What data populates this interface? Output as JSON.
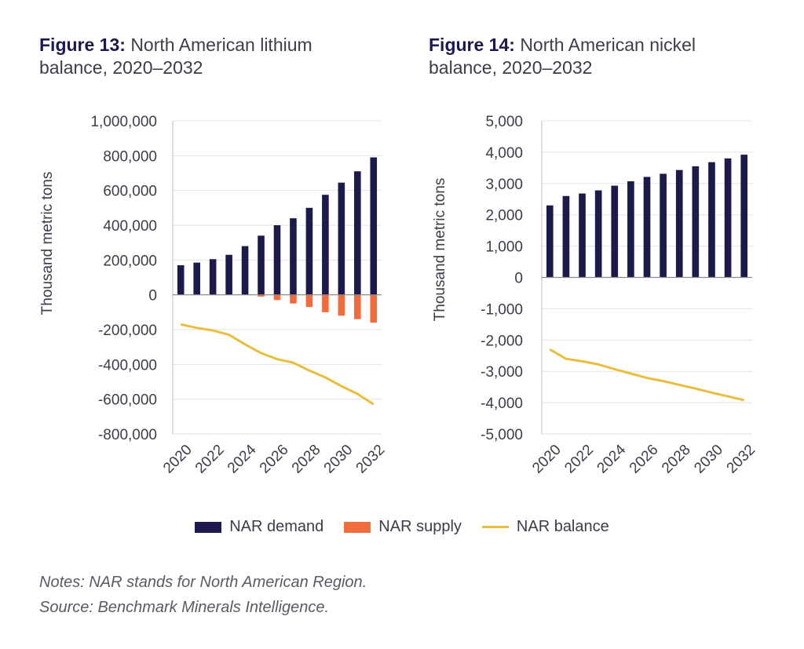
{
  "figures": [
    {
      "lead": "Figure 13:",
      "title": "North American lithium balance, 2020–2032"
    },
    {
      "lead": "Figure 14:",
      "title": "North American nickel balance, 2020–2032"
    }
  ],
  "legend": [
    {
      "label": "NAR demand",
      "color": "#1b1a4b",
      "kind": "box"
    },
    {
      "label": "NAR supply",
      "color": "#f26b3a",
      "kind": "box"
    },
    {
      "label": "NAR balance",
      "color": "#e8be3f",
      "kind": "line"
    }
  ],
  "notes": {
    "line1": "Notes: NAR stands for North American Region.",
    "line2": "Source: Benchmark Minerals Intelligence."
  },
  "chart_data": [
    {
      "type": "bar",
      "title": "Figure 13: North American lithium balance, 2020–2032",
      "ylabel": "Thousand metric tons",
      "ylim": [
        -800000,
        1000000
      ],
      "yticks": [
        1000000,
        800000,
        600000,
        400000,
        200000,
        0,
        -200000,
        -400000,
        -600000,
        -800000
      ],
      "ytick_labels": [
        "1,000,000",
        "800,000",
        "600,000",
        "400,000",
        "200,000",
        "0",
        "-200,000",
        "-400,000",
        "-600,000",
        "-800,000"
      ],
      "categories": [
        "2020",
        "2021",
        "2022",
        "2023",
        "2024",
        "2025",
        "2026",
        "2027",
        "2028",
        "2029",
        "2030",
        "2031",
        "2032"
      ],
      "xtick_labels": [
        "2020",
        "2022",
        "2024",
        "2026",
        "2028",
        "2030",
        "2032"
      ],
      "grid": true,
      "series": [
        {
          "name": "NAR demand",
          "type": "bar",
          "color": "#1b1a4b",
          "values": [
            170000,
            185000,
            205000,
            230000,
            280000,
            340000,
            400000,
            440000,
            500000,
            575000,
            645000,
            710000,
            790000
          ]
        },
        {
          "name": "NAR supply",
          "type": "bar",
          "color": "#f26b3a",
          "values": [
            0,
            0,
            0,
            0,
            0,
            -10000,
            -30000,
            -50000,
            -70000,
            -100000,
            -120000,
            -140000,
            -160000
          ]
        },
        {
          "name": "NAR balance",
          "type": "line",
          "color": "#e8be3f",
          "values": [
            -170000,
            -190000,
            -205000,
            -230000,
            -285000,
            -335000,
            -370000,
            -390000,
            -435000,
            -475000,
            -525000,
            -570000,
            -630000
          ]
        }
      ]
    },
    {
      "type": "bar",
      "title": "Figure 14: North American nickel balance, 2020–2032",
      "ylabel": "Thousand metric tons",
      "ylim": [
        -5000,
        5000
      ],
      "yticks": [
        5000,
        4000,
        3000,
        2000,
        1000,
        0,
        -1000,
        -2000,
        -3000,
        -4000,
        -5000
      ],
      "ytick_labels": [
        "5,000",
        "4,000",
        "3,000",
        "2,000",
        "1,000",
        "0",
        "-1,000",
        "-2,000",
        "-3,000",
        "-4,000",
        "-5,000"
      ],
      "categories": [
        "2020",
        "2021",
        "2022",
        "2023",
        "2024",
        "2025",
        "2026",
        "2027",
        "2028",
        "2029",
        "2030",
        "2031",
        "2032"
      ],
      "xtick_labels": [
        "2020",
        "2022",
        "2024",
        "2026",
        "2028",
        "2030",
        "2032"
      ],
      "grid": true,
      "series": [
        {
          "name": "NAR demand",
          "type": "bar",
          "color": "#1b1a4b",
          "values": [
            2300,
            2600,
            2680,
            2780,
            2930,
            3070,
            3210,
            3310,
            3430,
            3550,
            3680,
            3800,
            3920
          ]
        },
        {
          "name": "NAR balance",
          "type": "line",
          "color": "#e8be3f",
          "values": [
            -2300,
            -2600,
            -2680,
            -2780,
            -2930,
            -3070,
            -3210,
            -3310,
            -3430,
            -3550,
            -3680,
            -3800,
            -3920
          ]
        }
      ]
    }
  ]
}
